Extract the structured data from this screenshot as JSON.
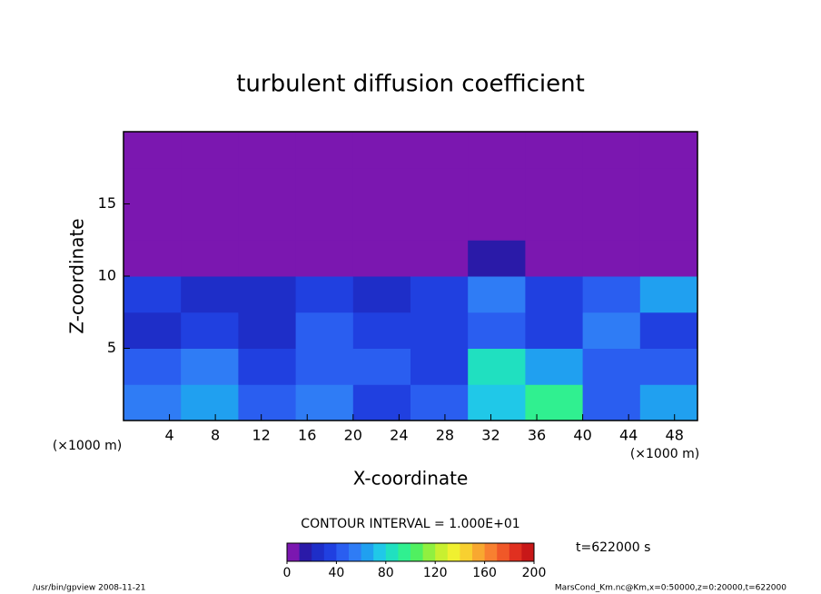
{
  "chart_data": {
    "type": "heatmap",
    "title": "turbulent diffusion coefficient",
    "xlabel": "X-coordinate",
    "ylabel": "Z-coordinate",
    "x_unit": "(×1000 m)",
    "xlim": [
      0,
      50
    ],
    "ylim": [
      0,
      20
    ],
    "xticks": [
      4,
      8,
      12,
      16,
      20,
      24,
      28,
      32,
      36,
      40,
      44,
      48
    ],
    "yticks": [
      5,
      10,
      15
    ],
    "x_edges": [
      0,
      5,
      10,
      15,
      20,
      25,
      30,
      35,
      40,
      45,
      50
    ],
    "y_edges": [
      0,
      2.5,
      5,
      7.5,
      10,
      12.5,
      15,
      17.5,
      20
    ],
    "values": [
      [
        50,
        60,
        40,
        50,
        30,
        40,
        70,
        90,
        40,
        60
      ],
      [
        40,
        50,
        30,
        40,
        40,
        30,
        80,
        60,
        40,
        40
      ],
      [
        20,
        30,
        20,
        40,
        30,
        30,
        40,
        30,
        50,
        30
      ],
      [
        30,
        20,
        20,
        30,
        20,
        30,
        50,
        30,
        40,
        60
      ],
      [
        0,
        0,
        0,
        0,
        0,
        0,
        10,
        0,
        0,
        0
      ],
      [
        0,
        0,
        0,
        0,
        0,
        0,
        0,
        0,
        0,
        0
      ],
      [
        0,
        0,
        0,
        0,
        0,
        0,
        0,
        0,
        0,
        0
      ],
      [
        0,
        0,
        0,
        0,
        0,
        0,
        0,
        0,
        0,
        0
      ]
    ],
    "colorbar": {
      "lim": [
        0,
        200
      ],
      "ticks": [
        0,
        40,
        80,
        120,
        160,
        200
      ],
      "step": 10,
      "colors": [
        "#7b17b0",
        "#2a1aa8",
        "#1e2ec8",
        "#2040e0",
        "#2a5ef0",
        "#2f7cf5",
        "#20a0f0",
        "#20c8e8",
        "#20e0c0",
        "#30f090",
        "#50f060",
        "#90f040",
        "#c8f030",
        "#f0f030",
        "#f8d030",
        "#f8a830",
        "#f88030",
        "#f05828",
        "#e03020",
        "#c81818"
      ]
    },
    "contour_interval": "CONTOUR INTERVAL = 1.000E+01",
    "time_label": "t=622000 s",
    "footer_left": "/usr/bin/gpview  2008-11-21",
    "footer_right": "MarsCond_Km.nc@Km,x=0:50000,z=0:20000,t=622000"
  }
}
